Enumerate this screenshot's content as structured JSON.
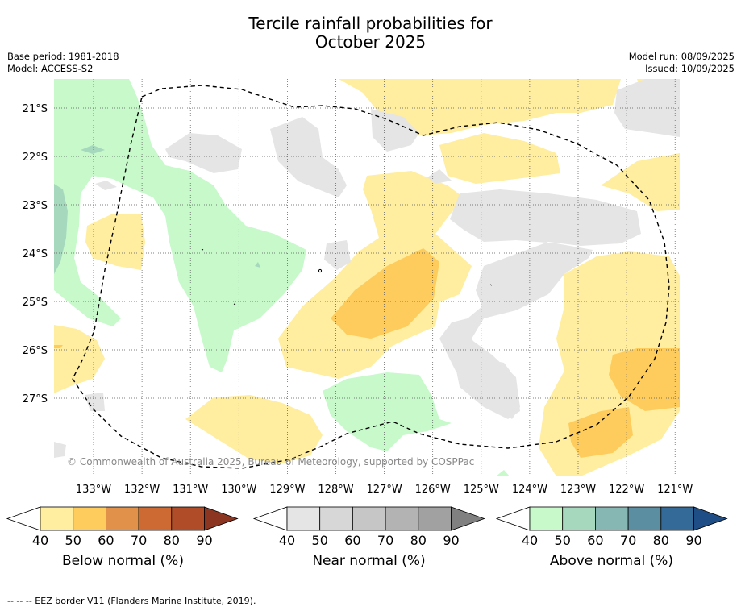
{
  "header": {
    "title_line1": "Tercile rainfall probabilities for",
    "title_line2": "October 2025",
    "base_period": "Base period: 1981-2018",
    "model": "Model: ACCESS-S2",
    "model_run": "Model run: 08/09/2025",
    "issued": "Issued: 10/09/2025"
  },
  "map": {
    "lat_labels": [
      "21°S",
      "22°S",
      "23°S",
      "24°S",
      "25°S",
      "26°S",
      "27°S"
    ],
    "lon_labels": [
      "133°W",
      "132°W",
      "131°W",
      "130°W",
      "129°W",
      "128°W",
      "127°W",
      "126°W",
      "125°W",
      "124°W",
      "123°W",
      "122°W",
      "121°W"
    ],
    "copyright": "© Commonwealth of Australia 2025, Bureau of Meteorology, supported by COSPPac",
    "colors": {
      "below_40": "#ffeda0",
      "below_50": "#fecc5c",
      "grey_40": "#e5e5e5",
      "above_40": "#c7f9cb",
      "above_50": "#a6d8bd"
    }
  },
  "colorbars": [
    {
      "label": "Below normal (%)",
      "ticks": [
        "40",
        "50",
        "60",
        "70",
        "80",
        "90"
      ],
      "colors": [
        "#ffeda0",
        "#fecc5c",
        "#e1914a",
        "#cd6a33",
        "#b04d28",
        "#8c3520"
      ]
    },
    {
      "label": "Near normal (%)",
      "ticks": [
        "40",
        "50",
        "60",
        "70",
        "80",
        "90"
      ],
      "colors": [
        "#e5e5e5",
        "#d7d7d7",
        "#c6c6c6",
        "#b3b3b3",
        "#a1a1a1",
        "#808080"
      ]
    },
    {
      "label": "Above normal (%)",
      "ticks": [
        "40",
        "50",
        "60",
        "70",
        "80",
        "90"
      ],
      "colors": [
        "#c7f9cb",
        "#a6d8bd",
        "#86b7b3",
        "#5a8ea0",
        "#336a98",
        "#1f4e87"
      ]
    }
  ],
  "footer": {
    "legend_text": "--  --  -- EEZ border V11 (Flanders Marine Institute, 2019)."
  }
}
